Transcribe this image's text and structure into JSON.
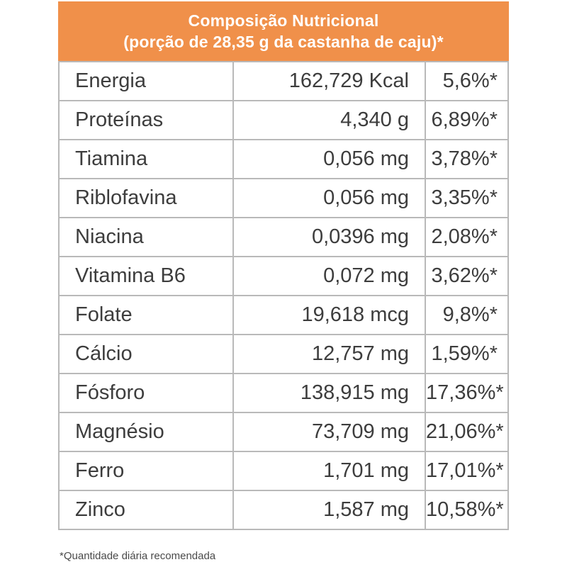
{
  "header": {
    "title": "Composição Nutricional",
    "subtitle": "(porção de 28,35 g da castanha de caju)*"
  },
  "colors": {
    "header_bg": "#f0904a",
    "grid": "#b9b9b9",
    "text": "#3d3d3d"
  },
  "rows": [
    {
      "nutrient": "Energia",
      "amount": "162,729 Kcal",
      "daily_value": "5,6%*"
    },
    {
      "nutrient": "Proteínas",
      "amount": "4,340 g",
      "daily_value": "6,89%*"
    },
    {
      "nutrient": "Tiamina",
      "amount": "0,056 mg",
      "daily_value": "3,78%*"
    },
    {
      "nutrient": "Riblofavina",
      "amount": "0,056 mg",
      "daily_value": "3,35%*"
    },
    {
      "nutrient": "Niacina",
      "amount": "0,0396 mg",
      "daily_value": "2,08%*"
    },
    {
      "nutrient": "Vitamina B6",
      "amount": "0,072 mg",
      "daily_value": "3,62%*"
    },
    {
      "nutrient": "Folate",
      "amount": "19,618 mcg",
      "daily_value": "9,8%*"
    },
    {
      "nutrient": "Cálcio",
      "amount": "12,757 mg",
      "daily_value": "1,59%*"
    },
    {
      "nutrient": "Fósforo",
      "amount": "138,915 mg",
      "daily_value": "17,36%*"
    },
    {
      "nutrient": "Magnésio",
      "amount": "73,709 mg",
      "daily_value": "21,06%*"
    },
    {
      "nutrient": "Ferro",
      "amount": "1,701 mg",
      "daily_value": "17,01%*"
    },
    {
      "nutrient": "Zinco",
      "amount": "1,587 mg",
      "daily_value": "10,58%*"
    }
  ],
  "footnote": "*Quantidade diária recomendada"
}
